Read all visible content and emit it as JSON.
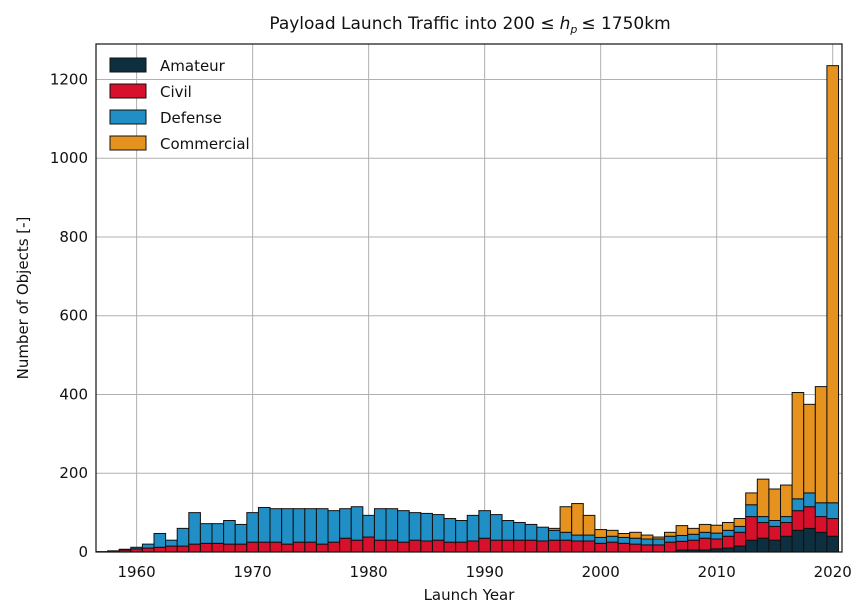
{
  "chart_data": {
    "type": "bar",
    "stacked": true,
    "title_prefix": "Payload Launch Traffic into 200 ",
    "title_le1": "≤",
    "title_var": "h",
    "title_sub": "p",
    "title_le2": "≤",
    "title_suffix": " 1750km",
    "xlabel": "Launch Year",
    "ylabel": "Number of Objects [-]",
    "xlim": [
      1956.5,
      2020.8
    ],
    "ylim": [
      0,
      1290
    ],
    "xticks": [
      1960,
      1970,
      1980,
      1990,
      2000,
      2010,
      2020
    ],
    "yticks": [
      0,
      200,
      400,
      600,
      800,
      1000,
      1200
    ],
    "grid": true,
    "legend_position": "top-left",
    "years": [
      1957,
      1958,
      1959,
      1960,
      1961,
      1962,
      1963,
      1964,
      1965,
      1966,
      1967,
      1968,
      1969,
      1970,
      1971,
      1972,
      1973,
      1974,
      1975,
      1976,
      1977,
      1978,
      1979,
      1980,
      1981,
      1982,
      1983,
      1984,
      1985,
      1986,
      1987,
      1988,
      1989,
      1990,
      1991,
      1992,
      1993,
      1994,
      1995,
      1996,
      1997,
      1998,
      1999,
      2000,
      2001,
      2002,
      2003,
      2004,
      2005,
      2006,
      2007,
      2008,
      2009,
      2010,
      2011,
      2012,
      2013,
      2014,
      2015,
      2016,
      2017,
      2018,
      2019,
      2020
    ],
    "series": [
      {
        "name": "Amateur",
        "color": "#0d2f3f",
        "values": [
          0,
          0,
          0,
          0,
          0,
          0,
          0,
          0,
          0,
          0,
          0,
          0,
          0,
          0,
          0,
          0,
          0,
          0,
          0,
          0,
          0,
          0,
          0,
          0,
          0,
          0,
          0,
          0,
          0,
          0,
          0,
          0,
          0,
          0,
          0,
          0,
          0,
          0,
          0,
          0,
          0,
          0,
          0,
          0,
          0,
          0,
          0,
          0,
          0,
          0,
          5,
          5,
          5,
          8,
          10,
          15,
          30,
          35,
          30,
          40,
          55,
          60,
          50,
          40
        ]
      },
      {
        "name": "Civil",
        "color": "#d7102b",
        "values": [
          1,
          3,
          5,
          8,
          10,
          12,
          15,
          15,
          20,
          22,
          22,
          20,
          20,
          25,
          25,
          25,
          20,
          25,
          25,
          20,
          25,
          35,
          30,
          38,
          30,
          30,
          25,
          30,
          28,
          30,
          25,
          25,
          28,
          35,
          30,
          30,
          30,
          30,
          28,
          30,
          30,
          28,
          28,
          22,
          25,
          22,
          20,
          18,
          18,
          25,
          22,
          25,
          30,
          25,
          30,
          35,
          60,
          40,
          35,
          35,
          50,
          55,
          40,
          45
        ]
      },
      {
        "name": "Defense",
        "color": "#1f8fc6",
        "values": [
          0,
          0,
          2,
          4,
          10,
          35,
          15,
          45,
          80,
          50,
          50,
          60,
          50,
          75,
          88,
          85,
          90,
          85,
          85,
          90,
          80,
          75,
          85,
          55,
          80,
          80,
          80,
          70,
          70,
          65,
          60,
          55,
          65,
          70,
          65,
          50,
          45,
          40,
          35,
          25,
          20,
          15,
          15,
          15,
          15,
          15,
          15,
          15,
          15,
          15,
          15,
          15,
          15,
          15,
          15,
          15,
          30,
          15,
          15,
          15,
          30,
          35,
          35,
          40
        ]
      },
      {
        "name": "Commercial",
        "color": "#e6921e",
        "values": [
          0,
          0,
          0,
          0,
          0,
          0,
          0,
          0,
          0,
          0,
          0,
          0,
          0,
          0,
          0,
          0,
          0,
          0,
          0,
          0,
          0,
          0,
          0,
          0,
          0,
          0,
          0,
          0,
          0,
          0,
          0,
          0,
          0,
          0,
          0,
          0,
          0,
          0,
          0,
          5,
          65,
          80,
          50,
          20,
          15,
          10,
          15,
          10,
          5,
          10,
          25,
          15,
          20,
          20,
          20,
          20,
          30,
          95,
          80,
          80,
          270,
          225,
          295,
          1110
        ]
      }
    ]
  }
}
